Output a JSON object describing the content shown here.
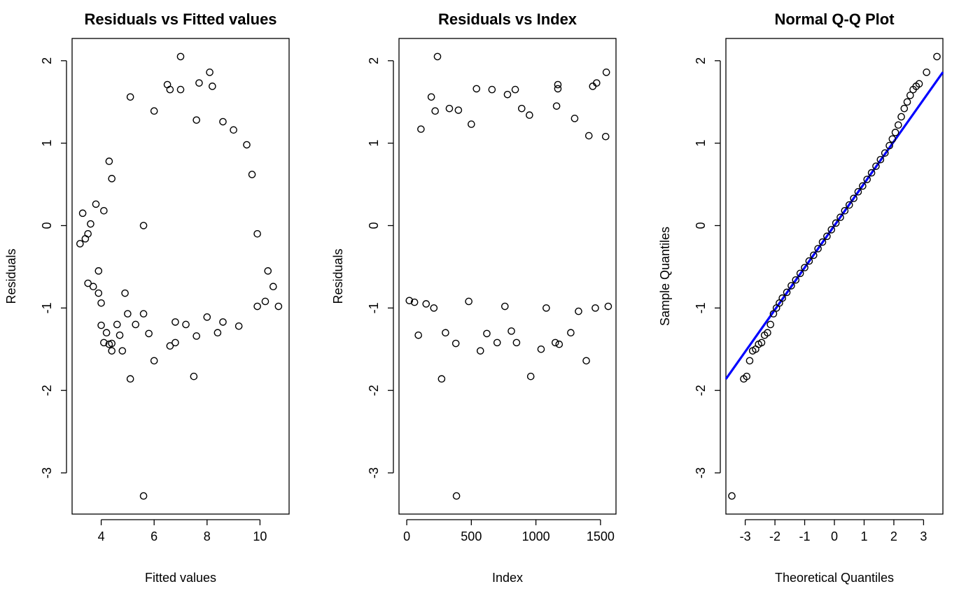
{
  "chart_data": [
    {
      "type": "scatter",
      "title": "Residuals vs Fitted values",
      "xlabel": "Fitted values",
      "ylabel": "Residuals",
      "xlim": [
        2.9,
        11.1
      ],
      "ylim": [
        -3.5,
        2.27
      ],
      "xticks": [
        4,
        6,
        8,
        10
      ],
      "xtick_labels": [
        "4",
        "6",
        "8",
        "10"
      ],
      "yticks": [
        -3,
        -2,
        -1,
        0,
        1,
        2
      ],
      "ytick_labels": [
        "-3",
        "-2",
        "-1",
        "0",
        "1",
        "2"
      ],
      "grid": false,
      "marker_color": "#000000",
      "points": [
        [
          7.0,
          2.05
        ],
        [
          8.1,
          1.86
        ],
        [
          8.2,
          1.69
        ],
        [
          7.7,
          1.73
        ],
        [
          7.0,
          1.65
        ],
        [
          6.6,
          1.65
        ],
        [
          5.1,
          1.56
        ],
        [
          6.5,
          1.71
        ],
        [
          5.6,
          3.3e-14
        ],
        [
          5.6,
          -3.28
        ],
        [
          7.5,
          -1.83
        ],
        [
          5.1,
          -1.86
        ],
        [
          6.0,
          -1.64
        ],
        [
          4.4,
          -1.52
        ],
        [
          4.8,
          -1.52
        ],
        [
          4.4,
          -1.43
        ],
        [
          4.1,
          -1.42
        ],
        [
          4.3,
          -1.44
        ],
        [
          4.7,
          -1.33
        ],
        [
          6.6,
          -1.46
        ],
        [
          6.8,
          -1.42
        ],
        [
          5.8,
          -1.31
        ],
        [
          7.6,
          -1.34
        ],
        [
          8.4,
          -1.3
        ],
        [
          3.2,
          -0.22
        ],
        [
          3.4,
          -0.16
        ],
        [
          3.5,
          -0.1
        ],
        [
          3.3,
          0.15
        ],
        [
          3.6,
          0.02
        ],
        [
          3.8,
          0.26
        ],
        [
          4.1,
          0.18
        ],
        [
          4.3,
          0.78
        ],
        [
          4.4,
          0.57
        ],
        [
          3.9,
          -0.55
        ],
        [
          3.5,
          -0.7
        ],
        [
          3.7,
          -0.74
        ],
        [
          3.9,
          -0.82
        ],
        [
          4.0,
          -0.94
        ],
        [
          4.0,
          -1.21
        ],
        [
          4.2,
          -1.3
        ],
        [
          4.6,
          -1.2
        ],
        [
          5.6,
          -1.07
        ],
        [
          5.0,
          -1.07
        ],
        [
          4.9,
          -0.82
        ],
        [
          5.3,
          -1.2
        ],
        [
          6.0,
          1.39
        ],
        [
          7.6,
          1.28
        ],
        [
          9.0,
          1.16
        ],
        [
          8.6,
          1.26
        ],
        [
          9.5,
          0.98
        ],
        [
          9.7,
          0.62
        ],
        [
          9.9,
          -0.1
        ],
        [
          10.3,
          -0.55
        ],
        [
          10.5,
          -0.74
        ],
        [
          10.7,
          -0.98
        ],
        [
          10.2,
          -0.92
        ],
        [
          9.9,
          -0.98
        ],
        [
          9.2,
          -1.22
        ],
        [
          8.6,
          -1.17
        ],
        [
          8.0,
          -1.11
        ],
        [
          7.2,
          -1.2
        ],
        [
          6.8,
          -1.17
        ]
      ]
    },
    {
      "type": "scatter",
      "title": "Residuals vs Index",
      "xlabel": "Index",
      "ylabel": "Residuals",
      "xlim": [
        -60,
        1620
      ],
      "ylim": [
        -3.5,
        2.27
      ],
      "xticks": [
        0,
        500,
        1000,
        1500
      ],
      "xtick_labels": [
        "0",
        "500",
        "1000",
        "1500"
      ],
      "yticks": [
        -3,
        -2,
        -1,
        0,
        1,
        2
      ],
      "ytick_labels": [
        "-3",
        "-2",
        "-1",
        "0",
        "1",
        "2"
      ],
      "grid": false,
      "marker_color": "#000000",
      "points": [
        [
          238,
          2.05
        ],
        [
          1545,
          1.86
        ],
        [
          1440,
          1.69
        ],
        [
          1470,
          1.73
        ],
        [
          1170,
          1.66
        ],
        [
          1170,
          1.71
        ],
        [
          660,
          1.65
        ],
        [
          540,
          1.66
        ],
        [
          840,
          1.65
        ],
        [
          190,
          1.56
        ],
        [
          780,
          1.59
        ],
        [
          385,
          -3.28
        ],
        [
          270,
          -1.86
        ],
        [
          960,
          -1.83
        ],
        [
          1390,
          -1.64
        ],
        [
          570,
          -1.52
        ],
        [
          1040,
          -1.5
        ],
        [
          380,
          -1.43
        ],
        [
          700,
          -1.42
        ],
        [
          850,
          -1.42
        ],
        [
          1150,
          -1.42
        ],
        [
          1180,
          -1.44
        ],
        [
          90,
          -1.33
        ],
        [
          300,
          -1.3
        ],
        [
          620,
          -1.31
        ],
        [
          810,
          -1.28
        ],
        [
          1270,
          -1.3
        ],
        [
          330,
          1.42
        ],
        [
          220,
          1.39
        ],
        [
          400,
          1.4
        ],
        [
          890,
          1.42
        ],
        [
          1160,
          1.45
        ],
        [
          1300,
          1.3
        ],
        [
          950,
          1.34
        ],
        [
          110,
          1.17
        ],
        [
          500,
          1.23
        ],
        [
          1410,
          1.09
        ],
        [
          1540,
          1.08
        ],
        [
          20,
          -0.91
        ],
        [
          60,
          -0.93
        ],
        [
          150,
          -0.95
        ],
        [
          210,
          -1.0
        ],
        [
          480,
          -0.92
        ],
        [
          760,
          -0.98
        ],
        [
          1080,
          -1.0
        ],
        [
          1460,
          -1.0
        ],
        [
          1560,
          -0.98
        ],
        [
          1330,
          -1.04
        ]
      ]
    },
    {
      "type": "scatter",
      "title": "Normal Q-Q Plot",
      "xlabel": "Theoretical Quantiles",
      "ylabel": "Sample Quantiles",
      "xlim": [
        -3.65,
        3.65
      ],
      "ylim": [
        -3.5,
        2.27
      ],
      "xticks": [
        -3,
        -2,
        -1,
        0,
        1,
        2,
        3
      ],
      "xtick_labels": [
        "-3",
        "-2",
        "-1",
        "0",
        "1",
        "2",
        "3"
      ],
      "yticks": [
        -3,
        -2,
        -1,
        0,
        1,
        2
      ],
      "ytick_labels": [
        "-3",
        "-2",
        "-1",
        "0",
        "1",
        "2"
      ],
      "grid": false,
      "marker_color": "#000000",
      "qq_line": {
        "intercept": 0.0,
        "slope": 0.51,
        "color": "#0000ff"
      },
      "points": [
        [
          -3.45,
          -3.28
        ],
        [
          -3.05,
          -1.86
        ],
        [
          -2.95,
          -1.83
        ],
        [
          -2.85,
          -1.64
        ],
        [
          -2.75,
          -1.52
        ],
        [
          -2.65,
          -1.5
        ],
        [
          -2.55,
          -1.44
        ],
        [
          -2.45,
          -1.42
        ],
        [
          -2.35,
          -1.33
        ],
        [
          -2.25,
          -1.3
        ],
        [
          -2.15,
          -1.2
        ],
        [
          -2.05,
          -1.07
        ],
        [
          -1.95,
          -1.0
        ],
        [
          -1.85,
          -0.94
        ],
        [
          -1.75,
          -0.88
        ],
        [
          -1.6,
          -0.81
        ],
        [
          -1.45,
          -0.73
        ],
        [
          -1.3,
          -0.66
        ],
        [
          -1.15,
          -0.58
        ],
        [
          -1.0,
          -0.51
        ],
        [
          -0.85,
          -0.43
        ],
        [
          -0.7,
          -0.36
        ],
        [
          -0.55,
          -0.28
        ],
        [
          -0.4,
          -0.2
        ],
        [
          -0.25,
          -0.13
        ],
        [
          -0.1,
          -0.05
        ],
        [
          0.05,
          0.03
        ],
        [
          0.2,
          0.1
        ],
        [
          0.35,
          0.18
        ],
        [
          0.5,
          0.25
        ],
        [
          0.65,
          0.33
        ],
        [
          0.8,
          0.41
        ],
        [
          0.95,
          0.48
        ],
        [
          1.1,
          0.56
        ],
        [
          1.25,
          0.64
        ],
        [
          1.4,
          0.72
        ],
        [
          1.55,
          0.8
        ],
        [
          1.7,
          0.88
        ],
        [
          1.85,
          0.97
        ],
        [
          1.95,
          1.05
        ],
        [
          2.05,
          1.13
        ],
        [
          2.15,
          1.22
        ],
        [
          2.25,
          1.32
        ],
        [
          2.35,
          1.42
        ],
        [
          2.45,
          1.5
        ],
        [
          2.55,
          1.58
        ],
        [
          2.65,
          1.65
        ],
        [
          2.75,
          1.69
        ],
        [
          2.85,
          1.72
        ],
        [
          3.1,
          1.86
        ],
        [
          3.45,
          2.05
        ]
      ]
    }
  ]
}
